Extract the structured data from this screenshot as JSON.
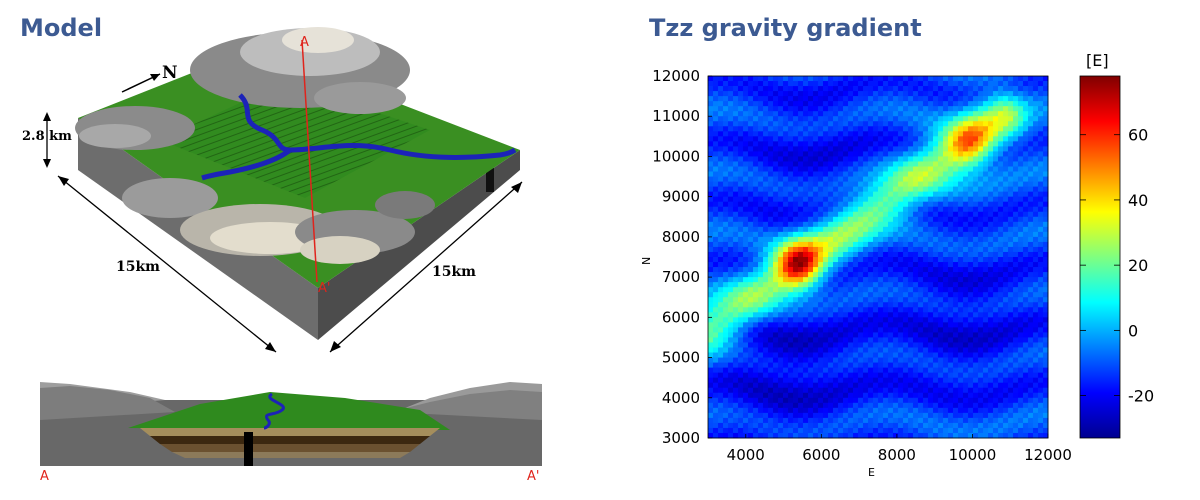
{
  "model_panel": {
    "title": "Model",
    "north_label": "N",
    "thickness_label": "2.8 km",
    "side_label_left": "15km",
    "side_label_right": "15km",
    "profile_top_label": "A",
    "profile_bottom_label": "A'",
    "section_left_label": "A",
    "section_right_label": "A'"
  },
  "gradient_panel": {
    "title": "Tzz gravity gradient",
    "colorbar_unit": "[E]",
    "colorbar_ticks": [
      "60",
      "40",
      "20",
      "0",
      "-20"
    ]
  },
  "chart_data": {
    "type": "heatmap",
    "title": "Tzz gravity gradient",
    "xlabel": "E",
    "ylabel": "N",
    "xlim": [
      3000,
      12000
    ],
    "ylim": [
      3000,
      12000
    ],
    "xticks": [
      4000,
      6000,
      8000,
      10000,
      12000
    ],
    "yticks": [
      3000,
      4000,
      5000,
      6000,
      7000,
      8000,
      9000,
      10000,
      11000,
      12000
    ],
    "colorbar": {
      "label": "[E]",
      "range": [
        -33,
        78
      ],
      "ticks": [
        60,
        40,
        20,
        0,
        -20
      ],
      "colormap": "jet"
    },
    "features": [
      {
        "name": "main diagonal anomaly",
        "from": [
          3000,
          5700
        ],
        "to": [
          10800,
          11000
        ],
        "value": 25
      },
      {
        "name": "peak",
        "x": 5400,
        "y": 7300,
        "value": 70
      },
      {
        "name": "secondary peak",
        "x": 9900,
        "y": 10300,
        "value": 45
      },
      {
        "name": "western low",
        "x": 5100,
        "y": 4700,
        "value": -22
      },
      {
        "name": "eastern low",
        "x": 9800,
        "y": 5800,
        "value": -20
      },
      {
        "name": "northwestern low",
        "x": 5800,
        "y": 10000,
        "value": -18
      }
    ]
  }
}
